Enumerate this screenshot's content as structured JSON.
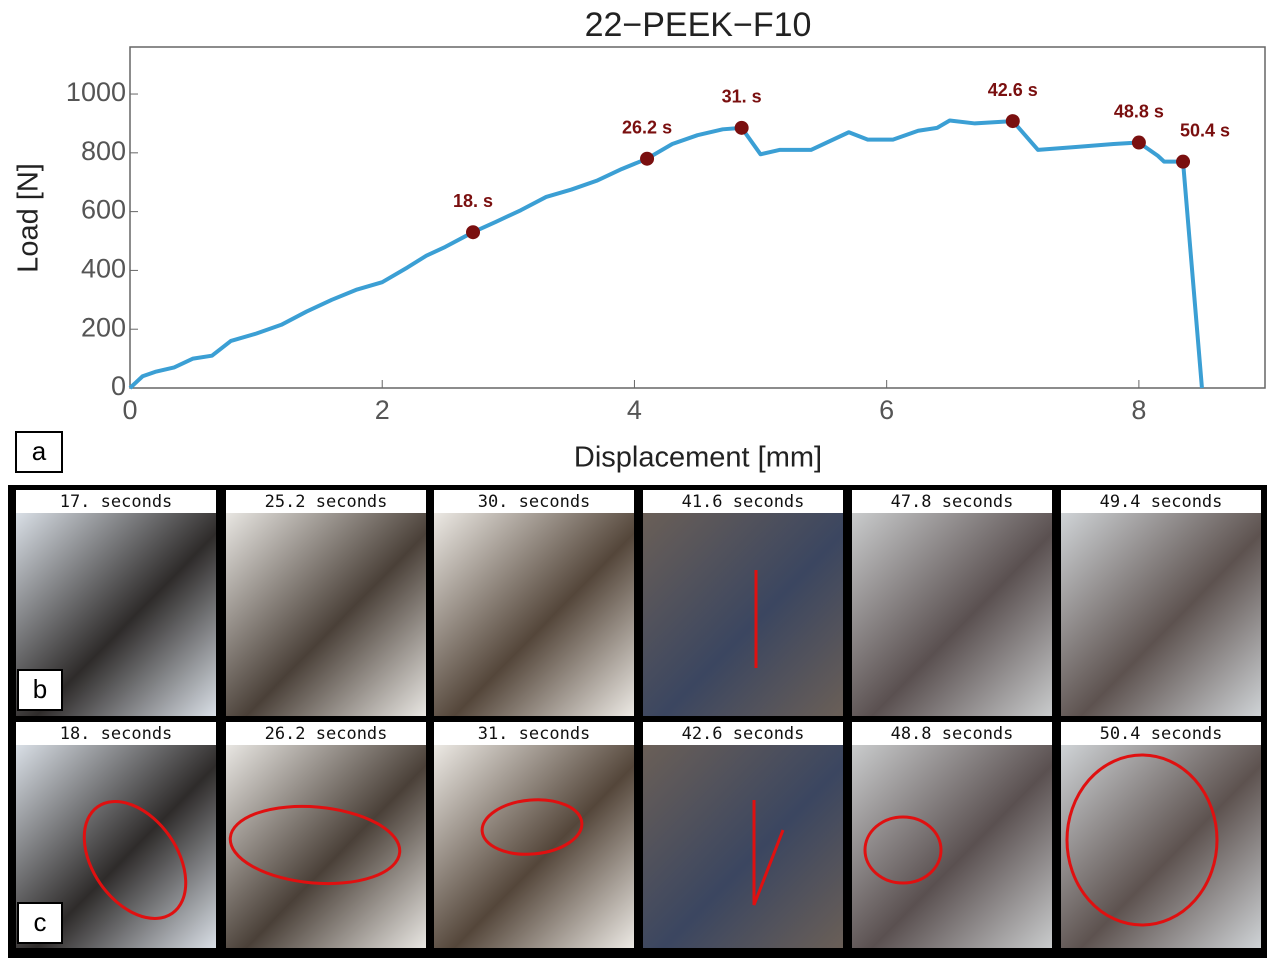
{
  "chart_data": {
    "type": "line",
    "title": "22−PEEK−F10",
    "x_label": "Displacement [mm]",
    "y_label": "Load [N]",
    "xlim": [
      0,
      9
    ],
    "ylim": [
      0,
      1160
    ],
    "xticks": [
      0,
      2,
      4,
      6,
      8
    ],
    "yticks": [
      0,
      200,
      400,
      600,
      800,
      1000
    ],
    "color": "#3b9fd4",
    "marker_color": "#7a0f0f",
    "x": [
      0,
      0.1,
      0.2,
      0.35,
      0.5,
      0.65,
      0.8,
      1.0,
      1.2,
      1.4,
      1.6,
      1.8,
      2.0,
      2.2,
      2.35,
      2.5,
      2.72,
      2.9,
      3.1,
      3.3,
      3.5,
      3.7,
      3.9,
      4.1,
      4.3,
      4.5,
      4.7,
      4.85,
      5.0,
      5.15,
      5.4,
      5.7,
      5.85,
      6.05,
      6.25,
      6.4,
      6.5,
      6.7,
      7.0,
      7.2,
      7.5,
      7.8,
      8.0,
      8.15,
      8.2,
      8.35,
      8.5
    ],
    "y": [
      0,
      40,
      55,
      70,
      100,
      110,
      160,
      185,
      215,
      260,
      300,
      335,
      360,
      410,
      450,
      480,
      530,
      565,
      605,
      650,
      675,
      705,
      745,
      780,
      830,
      860,
      880,
      885,
      795,
      810,
      810,
      870,
      845,
      845,
      875,
      885,
      910,
      900,
      908,
      810,
      820,
      830,
      835,
      790,
      770,
      770,
      0
    ],
    "annotations": [
      {
        "x": 2.72,
        "y": 530,
        "label": "18. s"
      },
      {
        "x": 4.1,
        "y": 780,
        "label": "26.2 s"
      },
      {
        "x": 4.85,
        "y": 885,
        "label": "31. s"
      },
      {
        "x": 7.0,
        "y": 908,
        "label": "42.6 s"
      },
      {
        "x": 8.0,
        "y": 835,
        "label": "48.8 s"
      },
      {
        "x": 8.35,
        "y": 770,
        "label": "50.4 s"
      }
    ]
  },
  "panels": {
    "labels": [
      "a",
      "b",
      "c"
    ],
    "rows": [
      [
        "17. seconds",
        "25.2 seconds",
        "30. seconds",
        "41.6 seconds",
        "47.8 seconds",
        "49.4 seconds"
      ],
      [
        "18. seconds",
        "26.2 seconds",
        "31. seconds",
        "42.6 seconds",
        "48.8 seconds",
        "50.4 seconds"
      ]
    ]
  }
}
